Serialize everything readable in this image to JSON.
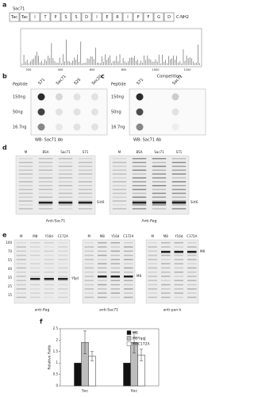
{
  "a": {
    "label": "a",
    "protein": "Sac71",
    "residues": [
      "Tac",
      "Tac",
      "I",
      "T",
      "P",
      "S",
      "S",
      "D",
      "I",
      "E",
      "R",
      "I",
      "P",
      "F",
      "G",
      "D"
    ],
    "terminus": "C-NH2",
    "spectrum_xticks": [
      "200",
      "400",
      "600",
      "800",
      "1000",
      "1200"
    ]
  },
  "b": {
    "label": "b",
    "row_header": "Peptide",
    "columns": [
      "S71",
      "Sac71",
      "S2S",
      "Sec20"
    ],
    "rows": [
      "150ng",
      "50ng",
      "16.7ng"
    ],
    "caption": "WB: Sac71 Ab"
  },
  "c": {
    "label": "c",
    "title": "Competition",
    "row_header": "Peptide",
    "columns": [
      "S71",
      "Sac71"
    ],
    "rows": [
      "150ng",
      "50ng",
      "16.7ng"
    ],
    "caption": "WB: Sac71 Ab"
  },
  "d": {
    "label": "d",
    "blots": [
      {
        "lanes": [
          "M",
          "BSA",
          "Sac71",
          "S71"
        ],
        "band": "Sirt6",
        "caption": "Anti-Sac71"
      },
      {
        "lanes": [
          "M",
          "BSA",
          "Sac71",
          "S71"
        ],
        "band": "Sirt6",
        "caption": "Anti-flag"
      }
    ]
  },
  "e": {
    "label": "e",
    "markers": [
      "100",
      "70",
      "55",
      "40",
      "35",
      "25",
      "15"
    ],
    "blots": [
      {
        "lanes": [
          "M",
          "M8",
          "Y16d",
          "C172A"
        ],
        "band": "Yfpd",
        "caption": "anti-flag"
      },
      {
        "lanes": [
          "M",
          "M8",
          "Y16d",
          "C172A"
        ],
        "band": "M8",
        "caption": "anti-Sac71"
      },
      {
        "lanes": [
          "M",
          "M8",
          "Y16d",
          "C172A"
        ],
        "band": "M8",
        "caption": "anti-pan-k"
      }
    ]
  },
  "f": {
    "label": "f",
    "chart": {
      "type": "bar",
      "y_label": "Relative Ratio",
      "categories": [
        "Sac",
        "Kac"
      ],
      "ylim": [
        0,
        2.5
      ],
      "yticks": [
        0,
        0.5,
        1,
        1.5,
        2,
        2.5
      ],
      "series": [
        {
          "name": "M8",
          "color": "#111111",
          "values": [
            1.0,
            1.0
          ],
          "errors": [
            0,
            0
          ]
        },
        {
          "name": "M8YqqJ",
          "color": "#bdbdbd",
          "values": [
            1.9,
            1.9
          ],
          "errors": [
            0.5,
            0.45
          ]
        },
        {
          "name": "M8C172A",
          "color": "#ffffff",
          "values": [
            1.3,
            1.35
          ],
          "errors": [
            0.2,
            0.25
          ]
        }
      ]
    }
  }
}
